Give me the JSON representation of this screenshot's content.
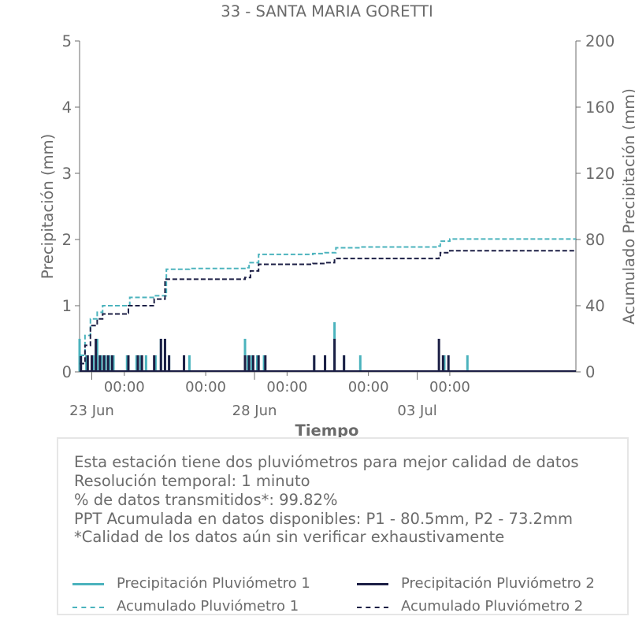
{
  "chart_data": {
    "type": "bar+line",
    "title": "33 - SANTA MARIA GORETTI",
    "xlabel": "Tiempo",
    "ylabel_left": "Precipitación (mm)",
    "ylabel_right": "Acumulado Precipitación (mm)",
    "ylim_left": [
      0,
      5
    ],
    "ylim_right": [
      0,
      200
    ],
    "yticks_left": [
      "0",
      "1",
      "2",
      "3",
      "4",
      "5"
    ],
    "yticks_right": [
      "0",
      "40",
      "80",
      "120",
      "160",
      "200"
    ],
    "xlim_days": [
      "2024-06-22T15:00",
      "2024-07-07T21:00"
    ],
    "x_tick_labels": [
      {
        "pos": "2024-06-24T00:00",
        "label": "00:00"
      },
      {
        "pos": "2024-06-26T12:00",
        "label": "00:00"
      },
      {
        "pos": "2024-06-29T00:00",
        "label": "00:00"
      },
      {
        "pos": "2024-07-01T12:00",
        "label": "00:00"
      },
      {
        "pos": "2024-07-04T00:00",
        "label": "00:00"
      }
    ],
    "x_major_labels": [
      {
        "pos": "2024-06-23T00:00",
        "label": "23 Jun"
      },
      {
        "pos": "2024-06-28T00:00",
        "label": "28 Jun"
      },
      {
        "pos": "2024-07-03T00:00",
        "label": "03 Jul"
      }
    ],
    "series": [
      {
        "name": "Precipitación Pluviómetro 1",
        "kind": "bar",
        "axis": "left",
        "color": "#4bb3bd",
        "points": [
          [
            "2024-06-22T15:00",
            0.5
          ],
          [
            "2024-06-22T20:00",
            0.25
          ],
          [
            "2024-06-23T01:00",
            0.25
          ],
          [
            "2024-06-23T04:00",
            0.5
          ],
          [
            "2024-06-23T07:00",
            0.25
          ],
          [
            "2024-06-23T10:00",
            0.25
          ],
          [
            "2024-06-23T13:00",
            0.25
          ],
          [
            "2024-06-23T16:00",
            0.25
          ],
          [
            "2024-06-24T02:00",
            0.25
          ],
          [
            "2024-06-24T09:00",
            0.25
          ],
          [
            "2024-06-24T12:00",
            0.25
          ],
          [
            "2024-06-24T16:00",
            0.25
          ],
          [
            "2024-06-24T23:00",
            0.25
          ],
          [
            "2024-06-25T03:00",
            0.5
          ],
          [
            "2024-06-25T06:00",
            0.5
          ],
          [
            "2024-06-25T09:00",
            0.25
          ],
          [
            "2024-06-25T20:00",
            0.25
          ],
          [
            "2024-06-26T00:00",
            0.25
          ],
          [
            "2024-06-27T17:00",
            0.5
          ],
          [
            "2024-06-27T19:00",
            0.25
          ],
          [
            "2024-06-27T22:00",
            0.25
          ],
          [
            "2024-06-28T02:00",
            0.25
          ],
          [
            "2024-06-28T07:00",
            0.25
          ],
          [
            "2024-06-29T20:00",
            0.25
          ],
          [
            "2024-06-30T04:00",
            0.25
          ],
          [
            "2024-06-30T11:00",
            0.75
          ],
          [
            "2024-06-30T18:00",
            0.25
          ],
          [
            "2024-07-01T06:00",
            0.25
          ],
          [
            "2024-07-03T20:00",
            0.25
          ],
          [
            "2024-07-04T13:00",
            0.25
          ]
        ]
      },
      {
        "name": "Precipitación Pluviómetro 2",
        "kind": "bar",
        "axis": "left",
        "color": "#1c1f45",
        "points": [
          [
            "2024-06-22T16:00",
            0.25
          ],
          [
            "2024-06-22T21:00",
            0.25
          ],
          [
            "2024-06-23T00:00",
            0.25
          ],
          [
            "2024-06-23T03:00",
            0.5
          ],
          [
            "2024-06-23T06:00",
            0.25
          ],
          [
            "2024-06-23T09:00",
            0.25
          ],
          [
            "2024-06-23T12:00",
            0.25
          ],
          [
            "2024-06-23T15:00",
            0.25
          ],
          [
            "2024-06-24T03:00",
            0.25
          ],
          [
            "2024-06-24T10:00",
            0.25
          ],
          [
            "2024-06-24T13:00",
            0.25
          ],
          [
            "2024-06-24T22:00",
            0.25
          ],
          [
            "2024-06-25T03:00",
            0.5
          ],
          [
            "2024-06-25T06:00",
            0.5
          ],
          [
            "2024-06-25T09:00",
            0.25
          ],
          [
            "2024-06-25T20:00",
            0.25
          ],
          [
            "2024-06-27T17:00",
            0.25
          ],
          [
            "2024-06-27T20:00",
            0.25
          ],
          [
            "2024-06-27T23:00",
            0.25
          ],
          [
            "2024-06-28T03:00",
            0.25
          ],
          [
            "2024-06-28T08:00",
            0.25
          ],
          [
            "2024-06-29T20:00",
            0.25
          ],
          [
            "2024-06-30T04:00",
            0.25
          ],
          [
            "2024-06-30T11:00",
            0.5
          ],
          [
            "2024-06-30T18:00",
            0.25
          ],
          [
            "2024-07-03T16:00",
            0.5
          ],
          [
            "2024-07-03T19:00",
            0.25
          ],
          [
            "2024-07-03T23:00",
            0.25
          ]
        ]
      },
      {
        "name": "Acumulado Pluviómetro 1",
        "kind": "step",
        "axis": "right",
        "color": "#4bb3bd",
        "points": [
          [
            "2024-06-22T15:00",
            10
          ],
          [
            "2024-06-22T19:00",
            22
          ],
          [
            "2024-06-22T23:00",
            32
          ],
          [
            "2024-06-23T04:00",
            36
          ],
          [
            "2024-06-23T08:00",
            40
          ],
          [
            "2024-06-24T02:00",
            40
          ],
          [
            "2024-06-24T04:00",
            45
          ],
          [
            "2024-06-24T22:00",
            46
          ],
          [
            "2024-06-25T07:00",
            62
          ],
          [
            "2024-06-26T00:00",
            62.5
          ],
          [
            "2024-06-27T18:00",
            63
          ],
          [
            "2024-06-27T20:00",
            66
          ],
          [
            "2024-06-28T03:00",
            71
          ],
          [
            "2024-06-29T19:00",
            71.5
          ],
          [
            "2024-06-30T04:00",
            72
          ],
          [
            "2024-06-30T12:00",
            75
          ],
          [
            "2024-07-01T06:00",
            75.5
          ],
          [
            "2024-07-03T16:00",
            76
          ],
          [
            "2024-07-03T17:00",
            79
          ],
          [
            "2024-07-04T00:00",
            80.3
          ],
          [
            "2024-07-07T21:00",
            80.5
          ]
        ]
      },
      {
        "name": "Acumulado Pluviómetro 2",
        "kind": "step",
        "axis": "right",
        "color": "#1c1f45",
        "points": [
          [
            "2024-06-22T15:00",
            5
          ],
          [
            "2024-06-22T19:00",
            16
          ],
          [
            "2024-06-22T23:00",
            28
          ],
          [
            "2024-06-23T04:00",
            32
          ],
          [
            "2024-06-23T08:00",
            35
          ],
          [
            "2024-06-24T02:00",
            35.5
          ],
          [
            "2024-06-24T03:00",
            40
          ],
          [
            "2024-06-24T22:00",
            44
          ],
          [
            "2024-06-25T06:00",
            56
          ],
          [
            "2024-06-26T00:00",
            56
          ],
          [
            "2024-06-27T17:00",
            57
          ],
          [
            "2024-06-27T21:00",
            61
          ],
          [
            "2024-06-28T03:00",
            65
          ],
          [
            "2024-06-29T19:00",
            65.5
          ],
          [
            "2024-06-30T04:00",
            66
          ],
          [
            "2024-06-30T11:00",
            68.5
          ],
          [
            "2024-07-03T16:00",
            69.5
          ],
          [
            "2024-07-03T17:00",
            72
          ],
          [
            "2024-07-04T00:00",
            73.2
          ],
          [
            "2024-07-07T21:00",
            73.2
          ]
        ]
      }
    ],
    "grid": false,
    "legend_placement": "bottom-box"
  },
  "info": {
    "lines": [
      "Esta estación tiene dos pluviómetros para mejor calidad de datos",
      "Resolución temporal: 1 minuto",
      "% de datos transmitidos*: 99.82%",
      "PPT Acumulada en datos disponibles: P1 - 80.5mm, P2 - 73.2mm",
      "*Calidad de los datos aún sin verificar exhaustivamente"
    ]
  },
  "legend": {
    "precip_p1": "Precipitación Pluviómetro 1",
    "precip_p2": "Precipitación Pluviómetro 2",
    "acum_p1": "Acumulado Pluviómetro 1",
    "acum_p2": "Acumulado Pluviómetro 2"
  },
  "colors": {
    "p1": "#4bb3bd",
    "p2": "#1c1f45",
    "text": "#6b6b6b"
  }
}
